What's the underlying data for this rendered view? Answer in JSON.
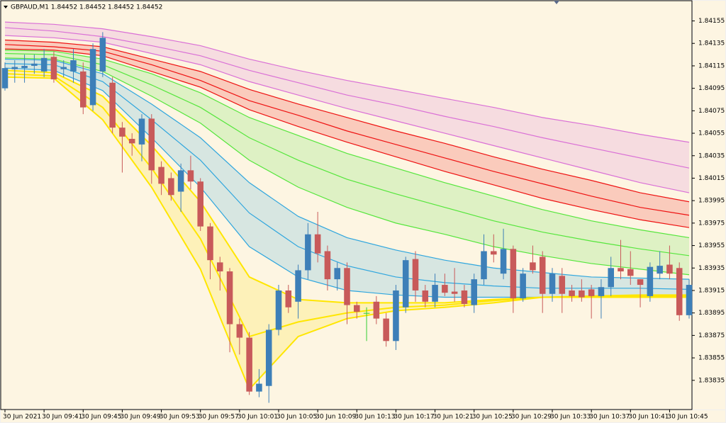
{
  "chart_data": {
    "type": "candlestick",
    "title": "GBPAUD,M1  1.84452 1.84452 1.84452 1.84452",
    "categories": [
      "30 Jun 2021",
      null,
      null,
      null,
      "30 Jun 09:41",
      null,
      null,
      null,
      "30 Jun 09:45",
      null,
      null,
      null,
      "30 Jun 09:49",
      null,
      null,
      null,
      "30 Jun 09:53",
      null,
      null,
      null,
      "30 Jun 09:57",
      null,
      null,
      null,
      "30 Jun 10:01",
      null,
      null,
      null,
      "30 Jun 10:05",
      null,
      null,
      null,
      "30 Jun 10:09",
      null,
      null,
      null,
      "30 Jun 10:13",
      null,
      null,
      null,
      "30 Jun 10:17",
      null,
      null,
      null,
      "30 Jun 10:21",
      null,
      null,
      null,
      "30 Jun 10:25",
      null,
      null,
      null,
      "30 Jun 10:29",
      null,
      null,
      null,
      "30 Jun 10:33",
      null,
      null,
      null,
      "30 Jun 10:37",
      null,
      null,
      null,
      "30 Jun 10:41",
      null,
      null,
      null,
      "30 Jun 10:45",
      null,
      null
    ],
    "open": [
      1.84095,
      1.84112,
      1.84113,
      1.84115,
      1.8411,
      1.84123,
      1.84112,
      1.8411,
      1.8411,
      1.8408,
      1.8411,
      1.841,
      1.8406,
      1.8405,
      1.84045,
      1.84068,
      1.84025,
      1.84015,
      1.84003,
      1.84022,
      1.84012,
      1.83972,
      1.8394,
      1.83932,
      1.83885,
      1.83873,
      1.83825,
      1.8383,
      1.8388,
      1.83915,
      1.83905,
      1.83933,
      1.83965,
      1.8395,
      1.83925,
      1.83935,
      1.83902,
      1.83895,
      1.83905,
      1.8389,
      1.8387,
      1.839,
      1.83943,
      1.83915,
      1.83905,
      1.8392,
      1.83914,
      1.83915,
      1.83902,
      1.83925,
      1.8395,
      1.8393,
      1.83952,
      1.83908,
      1.8394,
      1.83945,
      1.83912,
      1.83928,
      1.83915,
      1.83915,
      1.83916,
      1.8391,
      1.83918,
      1.83935,
      1.83934,
      1.83925,
      1.8391,
      1.8393,
      1.83938,
      1.83935,
      1.83893
    ],
    "high": [
      1.84118,
      1.8412,
      1.84125,
      1.84125,
      1.8413,
      1.84128,
      1.8412,
      1.8413,
      1.84118,
      1.84135,
      1.84145,
      1.84105,
      1.84065,
      1.84055,
      1.84072,
      1.84072,
      1.8403,
      1.8402,
      1.84028,
      1.84035,
      1.84015,
      1.83975,
      1.83945,
      1.83935,
      1.8389,
      1.83878,
      1.83845,
      1.83885,
      1.8392,
      1.8392,
      1.83938,
      1.83975,
      1.83985,
      1.83955,
      1.8394,
      1.8394,
      1.83905,
      1.839,
      1.8391,
      1.83895,
      1.8392,
      1.83945,
      1.8395,
      1.8392,
      1.8393,
      1.8393,
      1.83935,
      1.8392,
      1.8393,
      1.83965,
      1.83965,
      1.8397,
      1.83955,
      1.83935,
      1.83955,
      1.8395,
      1.83935,
      1.83935,
      1.8392,
      1.83925,
      1.8392,
      1.83925,
      1.83945,
      1.8396,
      1.8395,
      1.83925,
      1.8394,
      1.8395,
      1.83955,
      1.8394,
      1.83925
    ],
    "low": [
      1.84093,
      1.841,
      1.841,
      1.84108,
      1.84105,
      1.841,
      1.84105,
      1.841,
      1.84072,
      1.84075,
      1.84105,
      1.84055,
      1.8402,
      1.84035,
      1.8403,
      1.8401,
      1.84,
      1.83995,
      1.83985,
      1.84005,
      1.83968,
      1.83925,
      1.83915,
      1.8386,
      1.83858,
      1.83822,
      1.8382,
      1.83815,
      1.83875,
      1.83895,
      1.8389,
      1.83925,
      1.8394,
      1.83915,
      1.83915,
      1.83885,
      1.8389,
      1.8387,
      1.83885,
      1.83865,
      1.83862,
      1.83895,
      1.83905,
      1.839,
      1.839,
      1.8391,
      1.83905,
      1.839,
      1.83895,
      1.8392,
      1.8394,
      1.83925,
      1.83895,
      1.83905,
      1.8393,
      1.83895,
      1.83905,
      1.83895,
      1.83905,
      1.83905,
      1.8389,
      1.8389,
      1.8391,
      1.83925,
      1.8392,
      1.839,
      1.83905,
      1.83925,
      1.83925,
      1.83888,
      1.8389
    ],
    "close": [
      1.84113,
      1.84114,
      1.84115,
      1.84117,
      1.84122,
      1.84103,
      1.84114,
      1.8412,
      1.84078,
      1.8413,
      1.8414,
      1.8406,
      1.84052,
      1.84046,
      1.84068,
      1.84022,
      1.8401,
      1.84,
      1.84022,
      1.84012,
      1.83972,
      1.83942,
      1.83932,
      1.83885,
      1.83873,
      1.83825,
      1.83832,
      1.8388,
      1.83915,
      1.839,
      1.83933,
      1.83965,
      1.83948,
      1.83925,
      1.83935,
      1.83902,
      1.83896,
      1.83895,
      1.8389,
      1.8387,
      1.83915,
      1.83942,
      1.83915,
      1.83905,
      1.8392,
      1.83913,
      1.83912,
      1.83903,
      1.83925,
      1.8395,
      1.83947,
      1.83952,
      1.83908,
      1.8393,
      1.83933,
      1.83912,
      1.8393,
      1.83912,
      1.8391,
      1.83909,
      1.8391,
      1.83918,
      1.83935,
      1.83932,
      1.83928,
      1.8392,
      1.83936,
      1.83937,
      1.8393,
      1.83893,
      1.8392
    ],
    "up_color": "#3d7fb8",
    "down_color": "#c85a5a",
    "doji_color": "#32cd32",
    "ribbon_x": [
      0,
      5,
      10,
      15,
      20,
      25,
      30,
      35,
      40,
      45,
      50,
      55,
      60,
      65,
      70
    ],
    "ribbons": [
      {
        "color": "#da70d6",
        "lines": [
          [
            1.84154,
            1.84152,
            1.84148,
            1.84141,
            1.84133,
            1.84121,
            1.84111,
            1.84102,
            1.84094,
            1.84086,
            1.84078,
            1.84069,
            1.84062,
            1.84054,
            1.84047
          ],
          [
            1.84149,
            1.84146,
            1.84141,
            1.84133,
            1.84124,
            1.84111,
            1.841,
            1.84089,
            1.8408,
            1.8407,
            1.84061,
            1.84051,
            1.84042,
            1.84033,
            1.84024
          ],
          [
            1.84142,
            1.8414,
            1.84136,
            1.84126,
            1.84116,
            1.84101,
            1.84089,
            1.84077,
            1.84066,
            1.84055,
            1.84044,
            1.84033,
            1.84022,
            1.84011,
            1.84002
          ]
        ]
      },
      {
        "color": "#ee1111",
        "lines": [
          [
            1.84138,
            1.84136,
            1.84132,
            1.84121,
            1.8411,
            1.84094,
            1.84081,
            1.84069,
            1.84057,
            1.84046,
            1.84034,
            1.84023,
            1.84013,
            1.84002,
            1.83994
          ],
          [
            1.84134,
            1.84132,
            1.84128,
            1.84116,
            1.84102,
            1.84084,
            1.84071,
            1.84057,
            1.84045,
            1.84033,
            1.84021,
            1.8401,
            1.83999,
            1.83989,
            1.83982
          ],
          [
            1.8413,
            1.84129,
            1.84124,
            1.8411,
            1.84096,
            1.84076,
            1.84061,
            1.84047,
            1.84034,
            1.84021,
            1.84009,
            1.83997,
            1.83987,
            1.83978,
            1.83971
          ]
        ]
      },
      {
        "color": "#55e63c",
        "lines": [
          [
            1.84129,
            1.84128,
            1.84121,
            1.84108,
            1.84091,
            1.84069,
            1.84053,
            1.84037,
            1.84024,
            1.84011,
            1.83999,
            1.83987,
            1.83977,
            1.83969,
            1.83962
          ],
          [
            1.84126,
            1.84125,
            1.84116,
            1.84098,
            1.84078,
            1.84051,
            1.84031,
            1.84014,
            1.84001,
            1.83989,
            1.83977,
            1.83967,
            1.83959,
            1.83952,
            1.83946
          ],
          [
            1.84122,
            1.84121,
            1.8411,
            1.84088,
            1.84064,
            1.84031,
            1.84007,
            1.83989,
            1.83975,
            1.83965,
            1.83954,
            1.83946,
            1.83939,
            1.83934,
            1.83929
          ]
        ]
      },
      {
        "color": "#2fa6de",
        "lines": [
          [
            1.84121,
            1.8412,
            1.84108,
            1.84081,
            1.84051,
            1.84011,
            1.83981,
            1.83962,
            1.83951,
            1.83942,
            1.83935,
            1.83931,
            1.83927,
            1.83926,
            1.83925
          ],
          [
            1.84117,
            1.84116,
            1.84101,
            1.84067,
            1.84031,
            1.83984,
            1.83954,
            1.83937,
            1.83927,
            1.83922,
            1.83919,
            1.83917,
            1.83917,
            1.83917,
            1.83916
          ],
          [
            1.84113,
            1.84111,
            1.84093,
            1.84051,
            1.84007,
            1.83954,
            1.83927,
            1.83915,
            1.83911,
            1.83909,
            1.83909,
            1.83909,
            1.8391,
            1.83911,
            1.83911
          ]
        ]
      },
      {
        "color": "#ffe600",
        "lines": [
          [
            1.84111,
            1.84109,
            1.84088,
            1.84044,
            1.83994,
            1.83927,
            1.83907,
            1.83904,
            1.83904,
            1.83904,
            1.83907,
            1.83909,
            1.8391,
            1.83911,
            1.83911
          ],
          [
            1.84108,
            1.84106,
            1.84078,
            1.84024,
            1.83961,
            1.83874,
            1.83887,
            1.83895,
            1.839,
            1.83902,
            1.83906,
            1.83909,
            1.83909,
            1.8391,
            1.8391
          ],
          [
            1.84105,
            1.84104,
            1.84067,
            1.84007,
            1.83934,
            1.83827,
            1.83874,
            1.8389,
            1.83897,
            1.839,
            1.83904,
            1.83909,
            1.83909,
            1.83909,
            1.83909
          ]
        ]
      }
    ],
    "ylim": [
      1.83809,
      1.84173
    ],
    "yticks": [
      1.84155,
      1.84135,
      1.84115,
      1.84095,
      1.84075,
      1.84055,
      1.84035,
      1.84015,
      1.83995,
      1.83975,
      1.83955,
      1.83935,
      1.83915,
      1.83895,
      1.83875,
      1.83855,
      1.83835
    ],
    "grid": false
  }
}
